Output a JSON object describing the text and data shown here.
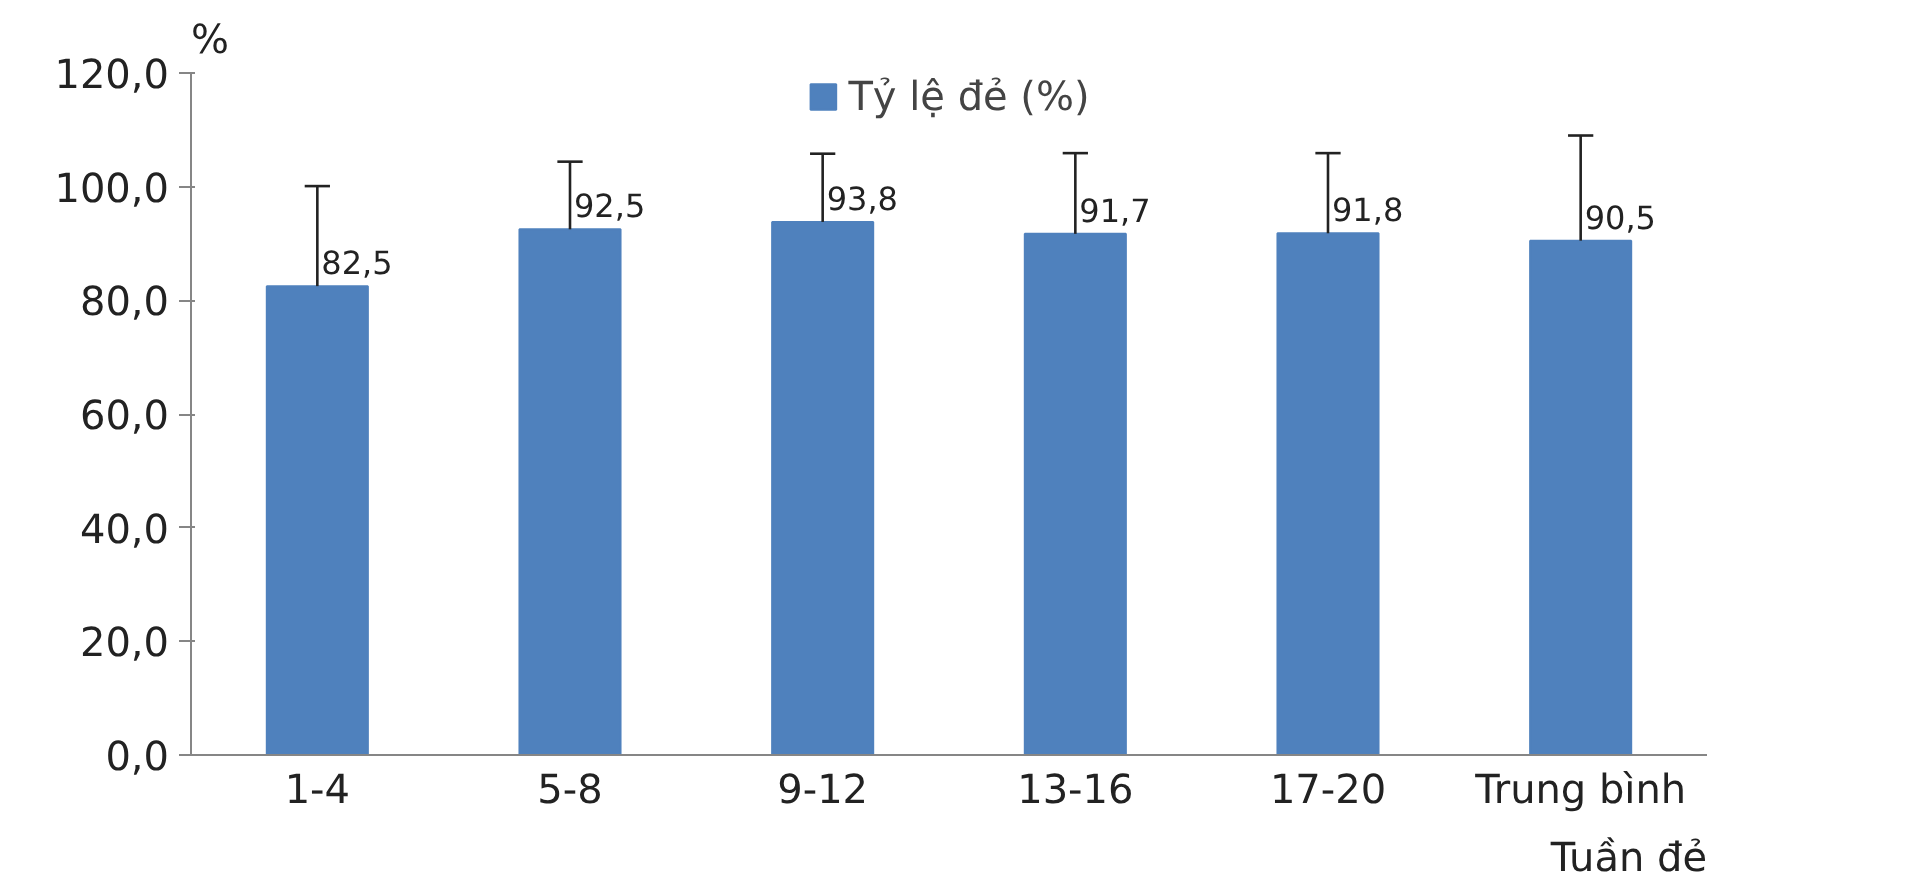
{
  "chart_data": {
    "type": "bar",
    "categories": [
      "1-4",
      "5-8",
      "9-12",
      "13-16",
      "17-20",
      "Trung bình"
    ],
    "series": [
      {
        "name": "Tỷ lệ đẻ (%)",
        "color": "#4f81bd",
        "values": [
          82.5,
          92.5,
          93.8,
          91.7,
          91.8,
          90.5
        ],
        "errors": [
          [
            82.5,
            100.1
          ],
          [
            92.5,
            104.4
          ],
          [
            93.8,
            105.8
          ],
          [
            91.7,
            105.9
          ],
          [
            91.8,
            105.9
          ],
          [
            90.5,
            109.0
          ]
        ]
      }
    ],
    "xlabel": "Tuần đẻ",
    "ylabel": "%",
    "ylim": [
      0,
      120
    ],
    "yticks": [
      {
        "value": 0,
        "label": "0,0"
      },
      {
        "value": 20,
        "label": "20,0"
      },
      {
        "value": 40,
        "label": "40,0"
      },
      {
        "value": 60,
        "label": "60,0"
      },
      {
        "value": 80,
        "label": "80,0"
      },
      {
        "value": 100,
        "label": "100,0"
      },
      {
        "value": 120,
        "label": "120,0"
      }
    ],
    "value_labels": [
      "82,5",
      "92,5",
      "93,8",
      "91,7",
      "91,8",
      "90,5"
    ],
    "legend": "top",
    "grid": false
  }
}
